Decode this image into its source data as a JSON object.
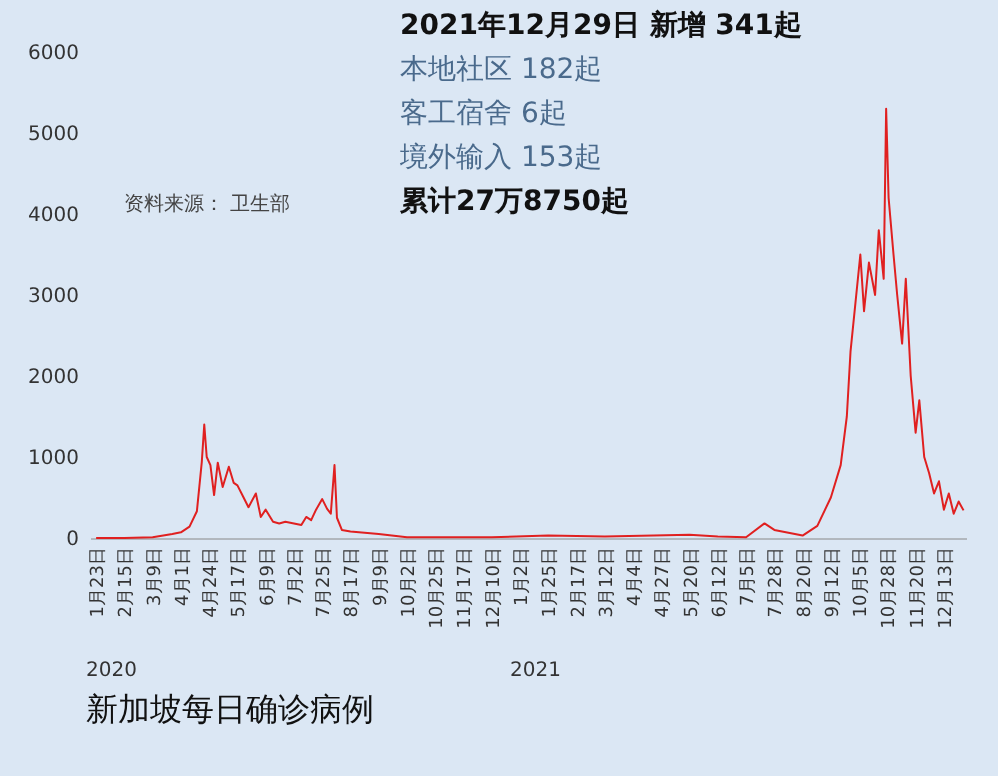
{
  "chart_data": {
    "type": "line",
    "title": "新加坡每日确诊病例",
    "annotations": [
      "2021年12月29日 新增 341起",
      "本地社区 182起",
      "客工宿舍 6起",
      "境外输入 153起",
      "累计27万8750起",
      "资料来源： 卫生部",
      "2020",
      "2021"
    ],
    "x": [
      "2020-01-23",
      "2020-02-15",
      "2020-03-09",
      "2020-03-25",
      "2020-04-01",
      "2020-04-08",
      "2020-04-14",
      "2020-04-18",
      "2020-04-20",
      "2020-04-22",
      "2020-04-25",
      "2020-04-28",
      "2020-05-01",
      "2020-05-05",
      "2020-05-10",
      "2020-05-14",
      "2020-05-17",
      "2020-05-22",
      "2020-05-26",
      "2020-06-01",
      "2020-06-05",
      "2020-06-09",
      "2020-06-15",
      "2020-06-20",
      "2020-06-25",
      "2020-07-02",
      "2020-07-08",
      "2020-07-12",
      "2020-07-16",
      "2020-07-20",
      "2020-07-25",
      "2020-07-29",
      "2020-08-01",
      "2020-08-04",
      "2020-08-06",
      "2020-08-10",
      "2020-08-17",
      "2020-09-09",
      "2020-10-02",
      "2020-11-17",
      "2020-12-10",
      "2021-01-25",
      "2021-03-12",
      "2021-05-20",
      "2021-06-12",
      "2021-07-05",
      "2021-07-20",
      "2021-07-28",
      "2021-08-20",
      "2021-09-01",
      "2021-09-12",
      "2021-09-20",
      "2021-09-25",
      "2021-09-28",
      "2021-10-02",
      "2021-10-06",
      "2021-10-09",
      "2021-10-13",
      "2021-10-18",
      "2021-10-21",
      "2021-10-25",
      "2021-10-27",
      "2021-10-29",
      "2021-11-02",
      "2021-11-05",
      "2021-11-09",
      "2021-11-12",
      "2021-11-16",
      "2021-11-20",
      "2021-11-23",
      "2021-11-27",
      "2021-12-01",
      "2021-12-05",
      "2021-12-09",
      "2021-12-13",
      "2021-12-17",
      "2021-12-21",
      "2021-12-25",
      "2021-12-29"
    ],
    "series": [
      {
        "color": "#e02020",
        "values": [
          0,
          0,
          10,
          50,
          70,
          140,
          330,
          940,
          1400,
          1000,
          900,
          530,
          930,
          630,
          880,
          680,
          650,
          500,
          380,
          550,
          260,
          350,
          200,
          180,
          200,
          180,
          160,
          260,
          220,
          350,
          480,
          360,
          300,
          900,
          250,
          100,
          80,
          50,
          10,
          10,
          10,
          30,
          20,
          40,
          20,
          10,
          180,
          100,
          30,
          150,
          500,
          900,
          1500,
          2300,
          2900,
          3500,
          2800,
          3400,
          3000,
          3800,
          3200,
          5300,
          4200,
          3500,
          3000,
          2400,
          3200,
          2000,
          1300,
          1700,
          1000,
          800,
          550,
          700,
          350,
          550,
          300,
          450,
          341
        ]
      }
    ],
    "xlim": [
      "2020-01-18",
      "2021-12-31"
    ],
    "ylim": [
      0,
      6000
    ],
    "yticks": [
      0,
      1000,
      2000,
      3000,
      4000,
      5000,
      6000
    ],
    "xticks": [
      {
        "value": "2020-01-23",
        "label": "1月23日"
      },
      {
        "value": "2020-02-15",
        "label": "2月15日"
      },
      {
        "value": "2020-03-09",
        "label": "3月9日"
      },
      {
        "value": "2020-04-01",
        "label": "4月1日"
      },
      {
        "value": "2020-04-24",
        "label": "4月24日"
      },
      {
        "value": "2020-05-17",
        "label": "5月17日"
      },
      {
        "value": "2020-06-09",
        "label": "6月9日"
      },
      {
        "value": "2020-07-02",
        "label": "7月2日"
      },
      {
        "value": "2020-07-25",
        "label": "7月25日"
      },
      {
        "value": "2020-08-17",
        "label": "8月17日"
      },
      {
        "value": "2020-09-09",
        "label": "9月9日"
      },
      {
        "value": "2020-10-02",
        "label": "10月2日"
      },
      {
        "value": "2020-10-25",
        "label": "10月25日"
      },
      {
        "value": "2020-11-17",
        "label": "11月17日"
      },
      {
        "value": "2020-12-10",
        "label": "12月10日"
      },
      {
        "value": "2021-01-02",
        "label": "1月2日"
      },
      {
        "value": "2021-01-25",
        "label": "1月25日"
      },
      {
        "value": "2021-02-17",
        "label": "2月17日"
      },
      {
        "value": "2021-03-12",
        "label": "3月12日"
      },
      {
        "value": "2021-04-04",
        "label": "4月4日"
      },
      {
        "value": "2021-04-27",
        "label": "4月27日"
      },
      {
        "value": "2021-05-20",
        "label": "5月20日"
      },
      {
        "value": "2021-06-12",
        "label": "6月12日"
      },
      {
        "value": "2021-07-05",
        "label": "7月5日"
      },
      {
        "value": "2021-07-28",
        "label": "7月28日"
      },
      {
        "value": "2021-08-20",
        "label": "8月20日"
      },
      {
        "value": "2021-09-12",
        "label": "9月12日"
      },
      {
        "value": "2021-10-05",
        "label": "10月5日"
      },
      {
        "value": "2021-10-28",
        "label": "10月28日"
      },
      {
        "value": "2021-11-20",
        "label": "11月20日"
      },
      {
        "value": "2021-12-13",
        "label": "12月13日"
      }
    ],
    "grid": false
  }
}
